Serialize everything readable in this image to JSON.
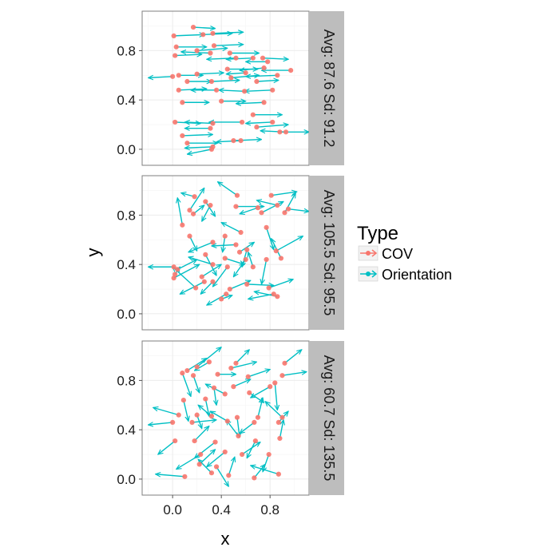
{
  "chart_data": {
    "type": "scatter",
    "xlabel": "x",
    "ylabel": "y",
    "xlim": [
      -0.25,
      1.12
    ],
    "ylim": [
      -0.13,
      1.12
    ],
    "x_ticks": [
      "0.0",
      "0.4",
      "0.8"
    ],
    "x_tick_values": [
      0.0,
      0.4,
      0.8
    ],
    "y_ticks": [
      "0.0",
      "0.4",
      "0.8"
    ],
    "y_tick_values": [
      0.0,
      0.4,
      0.8
    ],
    "grid": true,
    "legend": {
      "title": "Type",
      "placement": "right",
      "entries": [
        {
          "name": "COV",
          "color": "#F8766D"
        },
        {
          "name": "Orientation",
          "color": "#00BFC4"
        }
      ]
    },
    "facets": [
      {
        "strip": "Avg: 87.6 Sd: 91.2",
        "segments": [
          [
            0.17,
            0.99,
            0.35,
            0.98
          ],
          [
            0.01,
            0.92,
            0.26,
            0.93
          ],
          [
            0.33,
            0.94,
            0.58,
            0.95
          ],
          [
            0.25,
            0.93,
            0.49,
            0.94
          ],
          [
            0.03,
            0.83,
            0.28,
            0.83
          ],
          [
            0.2,
            0.8,
            0.45,
            0.82
          ],
          [
            0.02,
            0.76,
            0.24,
            0.77
          ],
          [
            0.34,
            0.84,
            0.58,
            0.85
          ],
          [
            0.47,
            0.78,
            0.71,
            0.78
          ],
          [
            0.31,
            0.78,
            0.07,
            0.79
          ],
          [
            0.52,
            0.74,
            0.28,
            0.73
          ],
          [
            0.66,
            0.74,
            0.44,
            0.73
          ],
          [
            0.74,
            0.74,
            0.95,
            0.73
          ],
          [
            0.78,
            0.71,
            0.6,
            0.71
          ],
          [
            0.97,
            0.64,
            0.73,
            0.64
          ],
          [
            0.05,
            0.6,
            0.25,
            0.6
          ],
          [
            0.0,
            0.59,
            -0.2,
            0.58
          ],
          [
            0.2,
            0.61,
            0.42,
            0.62
          ],
          [
            0.45,
            0.65,
            0.7,
            0.65
          ],
          [
            0.6,
            0.62,
            0.44,
            0.61
          ],
          [
            0.75,
            0.66,
            0.55,
            0.64
          ],
          [
            0.86,
            0.6,
            0.6,
            0.59
          ],
          [
            0.12,
            0.55,
            0.32,
            0.55
          ],
          [
            0.32,
            0.55,
            0.55,
            0.56
          ],
          [
            0.48,
            0.58,
            0.71,
            0.6
          ],
          [
            0.69,
            0.55,
            0.87,
            0.56
          ],
          [
            0.05,
            0.48,
            0.28,
            0.49
          ],
          [
            0.36,
            0.48,
            0.15,
            0.48
          ],
          [
            0.59,
            0.47,
            0.38,
            0.48
          ],
          [
            0.82,
            0.48,
            0.59,
            0.47
          ],
          [
            0.08,
            0.38,
            0.3,
            0.38
          ],
          [
            0.4,
            0.39,
            0.6,
            0.39
          ],
          [
            0.75,
            0.38,
            0.52,
            0.37
          ],
          [
            0.02,
            0.22,
            0.23,
            0.21
          ],
          [
            0.33,
            0.21,
            0.1,
            0.22
          ],
          [
            0.57,
            0.22,
            0.3,
            0.22
          ],
          [
            0.82,
            0.22,
            0.6,
            0.21
          ],
          [
            0.66,
            0.28,
            0.9,
            0.28
          ],
          [
            0.88,
            0.14,
            1.12,
            0.14
          ],
          [
            0.69,
            0.18,
            0.95,
            0.2
          ],
          [
            0.08,
            0.11,
            0.33,
            0.12
          ],
          [
            0.31,
            0.17,
            0.1,
            0.17
          ],
          [
            0.5,
            0.07,
            0.73,
            0.08
          ],
          [
            0.12,
            0.05,
            0.37,
            0.05
          ],
          [
            0.33,
            0.02,
            0.1,
            0.01
          ],
          [
            0.32,
            0.0,
            0.12,
            -0.04
          ],
          [
            0.56,
            0.07,
            0.36,
            0.06
          ],
          [
            0.93,
            0.14,
            0.72,
            0.15
          ]
        ]
      },
      {
        "strip": "Avg: 105.5 Sd: 95.5",
        "segments": [
          [
            0.18,
            0.95,
            0.07,
            0.98
          ],
          [
            0.27,
            0.91,
            0.35,
            0.79
          ],
          [
            0.53,
            0.96,
            0.37,
            1.07
          ],
          [
            0.81,
            0.96,
            1.02,
            0.99
          ],
          [
            0.86,
            0.88,
            0.69,
            0.92
          ],
          [
            0.14,
            0.84,
            0.26,
            1.02
          ],
          [
            0.31,
            0.88,
            0.24,
            0.75
          ],
          [
            0.52,
            0.87,
            0.75,
            0.87
          ],
          [
            0.7,
            0.86,
            0.55,
            0.81
          ],
          [
            0.95,
            0.85,
            1.12,
            0.83
          ],
          [
            0.08,
            0.72,
            0.04,
            0.94
          ],
          [
            0.17,
            0.81,
            0.26,
            0.88
          ],
          [
            0.73,
            0.82,
            0.91,
            0.91
          ],
          [
            0.92,
            0.82,
            1.01,
            0.98
          ],
          [
            0.14,
            0.63,
            0.2,
            0.51
          ],
          [
            0.43,
            0.63,
            0.41,
            0.5
          ],
          [
            0.56,
            0.66,
            0.4,
            0.74
          ],
          [
            0.77,
            0.7,
            0.83,
            0.52
          ],
          [
            0.33,
            0.58,
            0.13,
            0.5
          ],
          [
            0.52,
            0.56,
            0.32,
            0.55
          ],
          [
            0.61,
            0.52,
            0.57,
            0.38
          ],
          [
            0.85,
            0.51,
            1.07,
            0.63
          ],
          [
            0.43,
            0.45,
            0.59,
            0.4
          ],
          [
            0.27,
            0.48,
            0.36,
            0.31
          ],
          [
            0.6,
            0.44,
            0.5,
            0.3
          ],
          [
            0.77,
            0.44,
            0.73,
            0.24
          ],
          [
            0.89,
            0.45,
            0.81,
            0.61
          ],
          [
            0.04,
            0.36,
            0.2,
            0.44
          ],
          [
            0.02,
            0.32,
            0.06,
            0.38
          ],
          [
            0.45,
            0.38,
            0.33,
            0.22
          ],
          [
            0.66,
            0.38,
            0.62,
            0.5
          ],
          [
            0.01,
            0.29,
            0.22,
            0.4
          ],
          [
            0.33,
            0.26,
            0.23,
            0.16
          ],
          [
            0.19,
            0.21,
            0.0,
            0.38
          ],
          [
            0.47,
            0.2,
            0.64,
            0.27
          ],
          [
            0.61,
            0.24,
            0.83,
            0.23
          ],
          [
            0.79,
            0.21,
            0.99,
            0.28
          ],
          [
            0.83,
            0.16,
            0.62,
            0.12
          ],
          [
            0.86,
            0.14,
            0.67,
            0.18
          ],
          [
            0.44,
            0.16,
            0.28,
            0.07
          ],
          [
            0.01,
            0.38,
            -0.2,
            0.38
          ],
          [
            0.4,
            0.12,
            0.49,
            0.15
          ],
          [
            0.26,
            0.26,
            0.06,
            0.16
          ],
          [
            0.33,
            0.4,
            0.13,
            0.46
          ],
          [
            0.55,
            0.5,
            0.67,
            0.58
          ],
          [
            0.24,
            0.3,
            0.4,
            0.4
          ]
        ]
      },
      {
        "strip": "Avg: 60.7 Sd: 135.5",
        "segments": [
          [
            0.92,
            0.94,
            1.06,
            1.05
          ],
          [
            0.3,
            0.95,
            0.18,
            0.88
          ],
          [
            0.52,
            0.94,
            0.63,
            1.05
          ],
          [
            0.48,
            0.9,
            0.69,
            0.95
          ],
          [
            0.12,
            0.88,
            0.28,
            0.98
          ],
          [
            0.2,
            0.91,
            0.4,
            1.07
          ],
          [
            0.17,
            0.84,
            0.22,
            0.7
          ],
          [
            0.37,
            0.85,
            0.52,
            0.85
          ],
          [
            0.62,
            0.83,
            0.8,
            0.89
          ],
          [
            0.9,
            0.84,
            1.1,
            0.87
          ],
          [
            0.08,
            0.86,
            0.15,
            0.67
          ],
          [
            0.34,
            0.74,
            0.36,
            0.6
          ],
          [
            0.5,
            0.75,
            0.64,
            0.81
          ],
          [
            0.84,
            0.78,
            0.86,
            0.56
          ],
          [
            0.09,
            0.64,
            0.13,
            0.47
          ],
          [
            0.27,
            0.65,
            0.3,
            0.51
          ],
          [
            0.43,
            0.69,
            0.27,
            0.77
          ],
          [
            0.63,
            0.7,
            0.75,
            0.62
          ],
          [
            0.8,
            0.75,
            0.64,
            0.66
          ],
          [
            0.05,
            0.52,
            -0.16,
            0.58
          ],
          [
            0.2,
            0.52,
            0.24,
            0.41
          ],
          [
            0.32,
            0.51,
            0.21,
            0.6
          ],
          [
            0.53,
            0.5,
            0.55,
            0.34
          ],
          [
            0.7,
            0.5,
            0.74,
            0.66
          ],
          [
            0.9,
            0.5,
            0.76,
            0.63
          ],
          [
            0.0,
            0.46,
            -0.2,
            0.44
          ],
          [
            0.16,
            0.46,
            0.36,
            0.48
          ],
          [
            0.45,
            0.47,
            0.31,
            0.55
          ],
          [
            0.67,
            0.46,
            0.55,
            0.37
          ],
          [
            0.87,
            0.46,
            0.95,
            0.55
          ],
          [
            0.02,
            0.31,
            -0.12,
            0.2
          ],
          [
            0.18,
            0.31,
            0.3,
            0.43
          ],
          [
            0.35,
            0.3,
            0.18,
            0.17
          ],
          [
            0.54,
            0.35,
            0.44,
            0.48
          ],
          [
            0.68,
            0.31,
            0.61,
            0.17
          ],
          [
            0.88,
            0.33,
            0.91,
            0.48
          ],
          [
            0.23,
            0.2,
            0.03,
            0.08
          ],
          [
            0.43,
            0.22,
            0.28,
            0.1
          ],
          [
            0.57,
            0.2,
            0.72,
            0.3
          ],
          [
            0.79,
            0.2,
            0.74,
            0.06
          ],
          [
            0.1,
            0.02,
            -0.14,
            0.04
          ],
          [
            0.32,
            0.05,
            0.21,
            0.16
          ],
          [
            0.46,
            0.03,
            0.51,
            0.18
          ],
          [
            0.67,
            0.01,
            0.76,
            0.12
          ],
          [
            0.87,
            0.04,
            0.64,
            0.11
          ],
          [
            0.36,
            0.1,
            0.46,
            -0.06
          ],
          [
            0.22,
            0.12,
            0.35,
            0.24
          ]
        ]
      }
    ]
  }
}
